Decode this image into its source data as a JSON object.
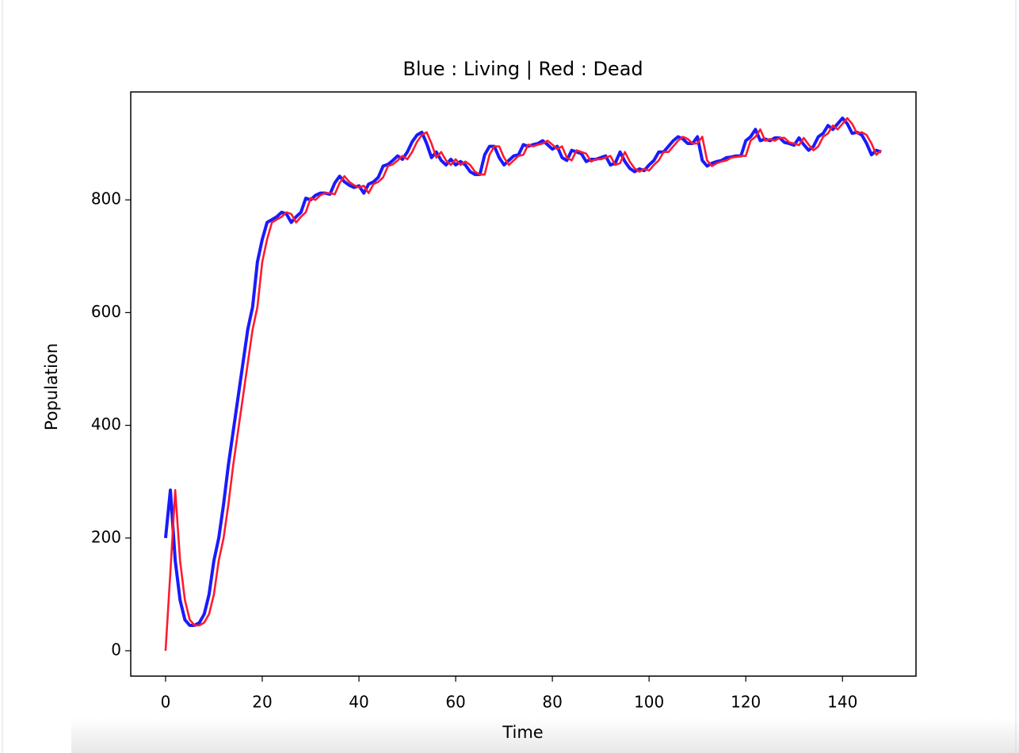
{
  "chart_data": {
    "type": "line",
    "title": "Blue : Living | Red : Dead",
    "x_label": "Time",
    "y_label": "Population",
    "x": [
      0,
      1,
      2,
      3,
      4,
      5,
      6,
      7,
      8,
      9,
      10,
      11,
      12,
      13,
      14,
      15,
      16,
      17,
      18,
      19,
      20,
      21,
      22,
      23,
      24,
      25,
      26,
      27,
      28,
      29,
      30,
      31,
      32,
      33,
      34,
      35,
      36,
      37,
      38,
      39,
      40,
      41,
      42,
      43,
      44,
      45,
      46,
      47,
      48,
      49,
      50,
      51,
      52,
      53,
      54,
      55,
      56,
      57,
      58,
      59,
      60,
      61,
      62,
      63,
      64,
      65,
      66,
      67,
      68,
      69,
      70,
      71,
      72,
      73,
      74,
      75,
      76,
      77,
      78,
      79,
      80,
      81,
      82,
      83,
      84,
      85,
      86,
      87,
      88,
      89,
      90,
      91,
      92,
      93,
      94,
      95,
      96,
      97,
      98,
      99,
      100,
      101,
      102,
      103,
      104,
      105,
      106,
      107,
      108,
      109,
      110,
      111,
      112,
      113,
      114,
      115,
      116,
      117,
      118,
      119,
      120,
      121,
      122,
      123,
      124,
      125,
      126,
      127,
      128,
      129,
      130,
      131,
      132,
      133,
      134,
      135,
      136,
      137,
      138,
      139,
      140,
      141,
      142,
      143,
      144,
      145,
      146,
      147,
      148
    ],
    "series": [
      {
        "color": "#1a1aff",
        "values": [
          200,
          285,
          160,
          90,
          55,
          45,
          45,
          50,
          65,
          100,
          160,
          200,
          260,
          330,
          390,
          450,
          510,
          570,
          610,
          690,
          730,
          760,
          765,
          770,
          778,
          775,
          760,
          770,
          778,
          803,
          800,
          808,
          812,
          812,
          810,
          830,
          842,
          832,
          826,
          822,
          825,
          812,
          828,
          832,
          840,
          860,
          863,
          870,
          878,
          872,
          885,
          903,
          915,
          920,
          900,
          875,
          885,
          870,
          862,
          872,
          862,
          868,
          862,
          850,
          845,
          845,
          880,
          895,
          895,
          875,
          862,
          870,
          878,
          880,
          898,
          895,
          898,
          900,
          905,
          898,
          890,
          895,
          875,
          870,
          888,
          885,
          882,
          868,
          872,
          872,
          875,
          878,
          862,
          865,
          885,
          868,
          856,
          850,
          855,
          852,
          862,
          870,
          885,
          885,
          895,
          905,
          912,
          908,
          900,
          900,
          912,
          870,
          860,
          865,
          868,
          870,
          875,
          876,
          878,
          878,
          905,
          912,
          925,
          905,
          908,
          905,
          910,
          910,
          902,
          900,
          897,
          910,
          898,
          888,
          895,
          912,
          918,
          932,
          925,
          935,
          945,
          935,
          918,
          920,
          915,
          900,
          880,
          888,
          885
        ]
      },
      {
        "color": "#ff1a2e",
        "values": [
          0,
          140,
          285,
          160,
          90,
          55,
          45,
          45,
          50,
          65,
          100,
          160,
          200,
          260,
          330,
          390,
          450,
          510,
          570,
          610,
          690,
          730,
          760,
          765,
          770,
          778,
          775,
          760,
          770,
          778,
          803,
          800,
          808,
          812,
          812,
          810,
          830,
          842,
          832,
          826,
          822,
          825,
          812,
          828,
          832,
          840,
          860,
          863,
          870,
          878,
          872,
          885,
          903,
          915,
          920,
          900,
          875,
          885,
          870,
          862,
          872,
          862,
          868,
          862,
          850,
          845,
          845,
          880,
          895,
          895,
          875,
          862,
          870,
          878,
          880,
          898,
          895,
          898,
          900,
          905,
          898,
          890,
          895,
          875,
          870,
          888,
          885,
          882,
          868,
          872,
          872,
          875,
          878,
          862,
          865,
          885,
          868,
          856,
          850,
          855,
          852,
          862,
          870,
          885,
          885,
          895,
          905,
          912,
          908,
          900,
          900,
          912,
          870,
          860,
          865,
          868,
          870,
          875,
          876,
          878,
          878,
          905,
          912,
          925,
          905,
          908,
          905,
          910,
          910,
          902,
          900,
          897,
          910,
          898,
          888,
          895,
          912,
          918,
          932,
          925,
          935,
          945,
          935,
          918,
          920,
          915,
          900,
          880,
          888
        ]
      }
    ],
    "xlim": [
      -7.2,
      155.2
    ],
    "ylim": [
      -45,
      991.5
    ],
    "xticks": [
      0,
      20,
      40,
      60,
      80,
      100,
      120,
      140
    ],
    "yticks": [
      0,
      200,
      400,
      600,
      800
    ],
    "grid": false
  }
}
